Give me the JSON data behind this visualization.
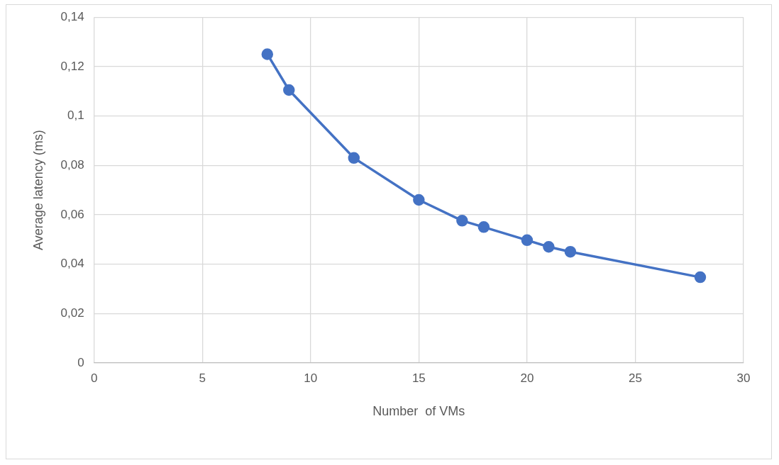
{
  "chart_data": {
    "type": "line",
    "xlabel": "Number  of VMs",
    "ylabel": "Average latency (ms)",
    "x": [
      8,
      9,
      12,
      15,
      17,
      18,
      20,
      21,
      22,
      28
    ],
    "series": [
      {
        "color": "#4472c4",
        "values": [
          0.125,
          0.1105,
          0.083,
          0.066,
          0.0576,
          0.055,
          0.0497,
          0.047,
          0.045,
          0.0347
        ]
      }
    ],
    "xlim": [
      0,
      30
    ],
    "xticks": [
      0,
      5,
      10,
      15,
      20,
      25,
      30
    ],
    "ylim": [
      0,
      0.14
    ],
    "yticks": [
      0,
      {
        "value": 0.02,
        "label": "0,02"
      },
      {
        "value": 0.04,
        "label": "0,04"
      },
      {
        "value": 0.06,
        "label": "0,06"
      },
      {
        "value": 0.08,
        "label": "0,08"
      },
      {
        "value": 0.1,
        "label": "0,1"
      },
      {
        "value": 0.12,
        "label": "0,12"
      },
      {
        "value": 0.14,
        "label": "0,14"
      }
    ],
    "grid": true,
    "marker": "circle",
    "line_style": "solid",
    "legend": false
  }
}
